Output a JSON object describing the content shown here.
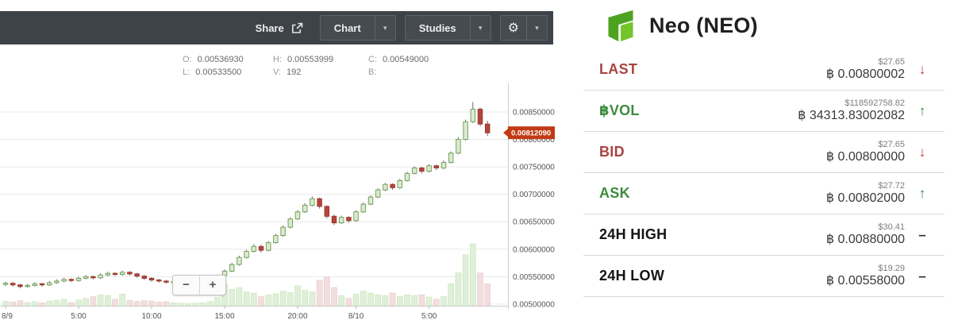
{
  "toolbar": {
    "share_label": "Share",
    "chart_label": "Chart",
    "studies_label": "Studies",
    "caret_glyph": "▾",
    "gear_glyph": "⚙"
  },
  "legend": {
    "o_key": "O:",
    "o_value": "0.00536930",
    "h_key": "H:",
    "h_value": "0.00553999",
    "c_key": "C:",
    "c_value": "0.00549000",
    "l_key": "L:",
    "l_value": "0.00533500",
    "v_key": "V:",
    "v_value": "192",
    "b_key": "B:",
    "b_value": ""
  },
  "zoom": {
    "minus_glyph": "−",
    "plus_glyph": "+"
  },
  "colors": {
    "accent_red": "#a94442",
    "accent_green": "#3d8b3d",
    "candle_up_fill": "#dcead2",
    "candle_up_stroke": "#73a35a",
    "candle_down_fill": "#b5443c",
    "candle_down_stroke": "#9e3a33",
    "wick": "#6b6b6b",
    "vol_up_fill": "#dff0d8",
    "vol_up_stroke": "#c9e2bb",
    "vol_down_fill": "#f2dede",
    "vol_down_stroke": "#e6c9c9",
    "grid": "#e9e9e9",
    "axis": "#cccccc",
    "axis_text": "#555555",
    "price_tag_bg": "#c13a15",
    "toolbar_bg": "#3d4348"
  },
  "chart_data": {
    "type": "candlestick",
    "interval_minutes": 30,
    "columns": [
      "open",
      "high",
      "low",
      "close",
      "volume"
    ],
    "y_axis": {
      "range": [
        0.00497,
        0.00902
      ],
      "ticks": [
        {
          "price": 0.0085,
          "label": "0.00850000"
        },
        {
          "price": 0.008,
          "label": "0.00800000"
        },
        {
          "price": 0.0075,
          "label": "0.00750000"
        },
        {
          "price": 0.007,
          "label": "0.00700000"
        },
        {
          "price": 0.0065,
          "label": "0.00650000"
        },
        {
          "price": 0.006,
          "label": "0.00600000"
        },
        {
          "price": 0.0055,
          "label": "0.00550000"
        },
        {
          "price": 0.005,
          "label": "0.00500000"
        }
      ]
    },
    "x_axis": {
      "labels": [
        {
          "text": "8/9",
          "candle": 0
        },
        {
          "text": "5:00",
          "candle": 10
        },
        {
          "text": "10:00",
          "candle": 20
        },
        {
          "text": "15:00",
          "candle": 30
        },
        {
          "text": "20:00",
          "candle": 40
        },
        {
          "text": "8/10",
          "candle": 48
        },
        {
          "text": "5:00",
          "candle": 58
        }
      ]
    },
    "last_price": {
      "value": 0.0081209,
      "label": "0.00812090"
    },
    "candles": [
      [
        0.00536,
        0.00541,
        0.00533,
        0.00538,
        12
      ],
      [
        0.00538,
        0.0054,
        0.00532,
        0.00535,
        10
      ],
      [
        0.00535,
        0.00537,
        0.00529,
        0.00532,
        14
      ],
      [
        0.00532,
        0.00537,
        0.0053,
        0.00534,
        9
      ],
      [
        0.00534,
        0.0054,
        0.00532,
        0.00537,
        11
      ],
      [
        0.00537,
        0.00539,
        0.00532,
        0.00535,
        8
      ],
      [
        0.00535,
        0.00542,
        0.00533,
        0.00539,
        13
      ],
      [
        0.00539,
        0.00545,
        0.00537,
        0.00542,
        15
      ],
      [
        0.00542,
        0.00548,
        0.0054,
        0.00545,
        18
      ],
      [
        0.00545,
        0.00547,
        0.0054,
        0.00543,
        9
      ],
      [
        0.00543,
        0.0055,
        0.00541,
        0.00547,
        16
      ],
      [
        0.00547,
        0.00553,
        0.00545,
        0.0055,
        20
      ],
      [
        0.0055,
        0.00552,
        0.00545,
        0.00548,
        25
      ],
      [
        0.00548,
        0.00556,
        0.00546,
        0.00553,
        30
      ],
      [
        0.00553,
        0.00559,
        0.00551,
        0.00556,
        28
      ],
      [
        0.00556,
        0.00558,
        0.00551,
        0.00554,
        18
      ],
      [
        0.00554,
        0.00561,
        0.00552,
        0.00558,
        32
      ],
      [
        0.00558,
        0.0056,
        0.00552,
        0.00555,
        15
      ],
      [
        0.00555,
        0.00557,
        0.00548,
        0.00551,
        12
      ],
      [
        0.00551,
        0.00553,
        0.00544,
        0.00547,
        14
      ],
      [
        0.00547,
        0.00549,
        0.00541,
        0.00544,
        13
      ],
      [
        0.00544,
        0.00546,
        0.00539,
        0.00542,
        10
      ],
      [
        0.00542,
        0.00544,
        0.00537,
        0.0054,
        11
      ],
      [
        0.0054,
        0.00544,
        0.00538,
        0.00541,
        8
      ],
      [
        0.00541,
        0.00544,
        0.00539,
        0.00542,
        7
      ],
      [
        0.00542,
        0.00544,
        0.0054,
        0.00542,
        6
      ],
      [
        0.00542,
        0.00545,
        0.0054,
        0.00543,
        7
      ],
      [
        0.00543,
        0.00546,
        0.00541,
        0.00544,
        8
      ],
      [
        0.00544,
        0.00549,
        0.00542,
        0.00547,
        12
      ],
      [
        0.00547,
        0.00554,
        0.00545,
        0.00552,
        22
      ],
      [
        0.00552,
        0.00563,
        0.0055,
        0.0056,
        60
      ],
      [
        0.0056,
        0.00575,
        0.00558,
        0.00572,
        45
      ],
      [
        0.00572,
        0.00588,
        0.0057,
        0.00585,
        50
      ],
      [
        0.00585,
        0.00599,
        0.00583,
        0.00596,
        38
      ],
      [
        0.00596,
        0.00609,
        0.00594,
        0.00605,
        35
      ],
      [
        0.00605,
        0.00608,
        0.00594,
        0.00598,
        25
      ],
      [
        0.00598,
        0.00615,
        0.00596,
        0.00612,
        30
      ],
      [
        0.00612,
        0.00628,
        0.0061,
        0.00625,
        33
      ],
      [
        0.00625,
        0.00643,
        0.00623,
        0.0064,
        40
      ],
      [
        0.0064,
        0.00658,
        0.00638,
        0.00655,
        36
      ],
      [
        0.00655,
        0.00671,
        0.00653,
        0.00668,
        55
      ],
      [
        0.00668,
        0.00684,
        0.00666,
        0.0068,
        42
      ],
      [
        0.0068,
        0.00696,
        0.00678,
        0.00692,
        38
      ],
      [
        0.00692,
        0.00694,
        0.00674,
        0.00678,
        70
      ],
      [
        0.00678,
        0.0068,
        0.00656,
        0.0066,
        80
      ],
      [
        0.0066,
        0.00663,
        0.00644,
        0.00648,
        50
      ],
      [
        0.00648,
        0.00661,
        0.00646,
        0.00658,
        28
      ],
      [
        0.00658,
        0.0066,
        0.00648,
        0.00652,
        20
      ],
      [
        0.00652,
        0.00671,
        0.0065,
        0.00668,
        32
      ],
      [
        0.00668,
        0.00685,
        0.00666,
        0.00682,
        40
      ],
      [
        0.00682,
        0.00698,
        0.0068,
        0.00695,
        35
      ],
      [
        0.00695,
        0.00711,
        0.00693,
        0.00708,
        30
      ],
      [
        0.00708,
        0.00721,
        0.00706,
        0.00718,
        28
      ],
      [
        0.00718,
        0.0072,
        0.00708,
        0.00712,
        35
      ],
      [
        0.00712,
        0.00728,
        0.0071,
        0.00725,
        26
      ],
      [
        0.00725,
        0.00741,
        0.00723,
        0.00738,
        30
      ],
      [
        0.00738,
        0.00751,
        0.00736,
        0.00748,
        28
      ],
      [
        0.00748,
        0.0075,
        0.00738,
        0.00742,
        30
      ],
      [
        0.00742,
        0.00755,
        0.0074,
        0.00752,
        24
      ],
      [
        0.00752,
        0.00754,
        0.00744,
        0.00748,
        18
      ],
      [
        0.00748,
        0.00762,
        0.00746,
        0.00758,
        26
      ],
      [
        0.00758,
        0.00778,
        0.00756,
        0.00775,
        60
      ],
      [
        0.00775,
        0.00804,
        0.00773,
        0.008,
        90
      ],
      [
        0.008,
        0.00836,
        0.00798,
        0.00832,
        140
      ],
      [
        0.00832,
        0.00868,
        0.0083,
        0.00855,
        170
      ],
      [
        0.00855,
        0.00858,
        0.00824,
        0.00828,
        90
      ],
      [
        0.00828,
        0.00834,
        0.00806,
        0.00812,
        60
      ]
    ]
  },
  "ticker": {
    "title": "Neo (NEO)",
    "logo_icon": "neo-logo",
    "rows": [
      {
        "label": "LAST",
        "usd": "$27.65",
        "btc": "฿ 0.00800002",
        "color": "red",
        "direction": "down",
        "glyph": "↓"
      },
      {
        "label": "฿VOL",
        "usd": "$118592758.82",
        "btc": "฿ 34313.83002082",
        "color": "green",
        "direction": "up",
        "glyph": "↑"
      },
      {
        "label": "BID",
        "usd": "$27.65",
        "btc": "฿ 0.00800000",
        "color": "red",
        "direction": "down",
        "glyph": "↓"
      },
      {
        "label": "ASK",
        "usd": "$27.72",
        "btc": "฿ 0.00802000",
        "color": "green",
        "direction": "up",
        "glyph": "↑"
      },
      {
        "label": "24H HIGH",
        "usd": "$30.41",
        "btc": "฿ 0.00880000",
        "color": "black",
        "direction": "flat",
        "glyph": "–"
      },
      {
        "label": "24H LOW",
        "usd": "$19.29",
        "btc": "฿ 0.00558000",
        "color": "black",
        "direction": "flat",
        "glyph": "–"
      }
    ]
  }
}
